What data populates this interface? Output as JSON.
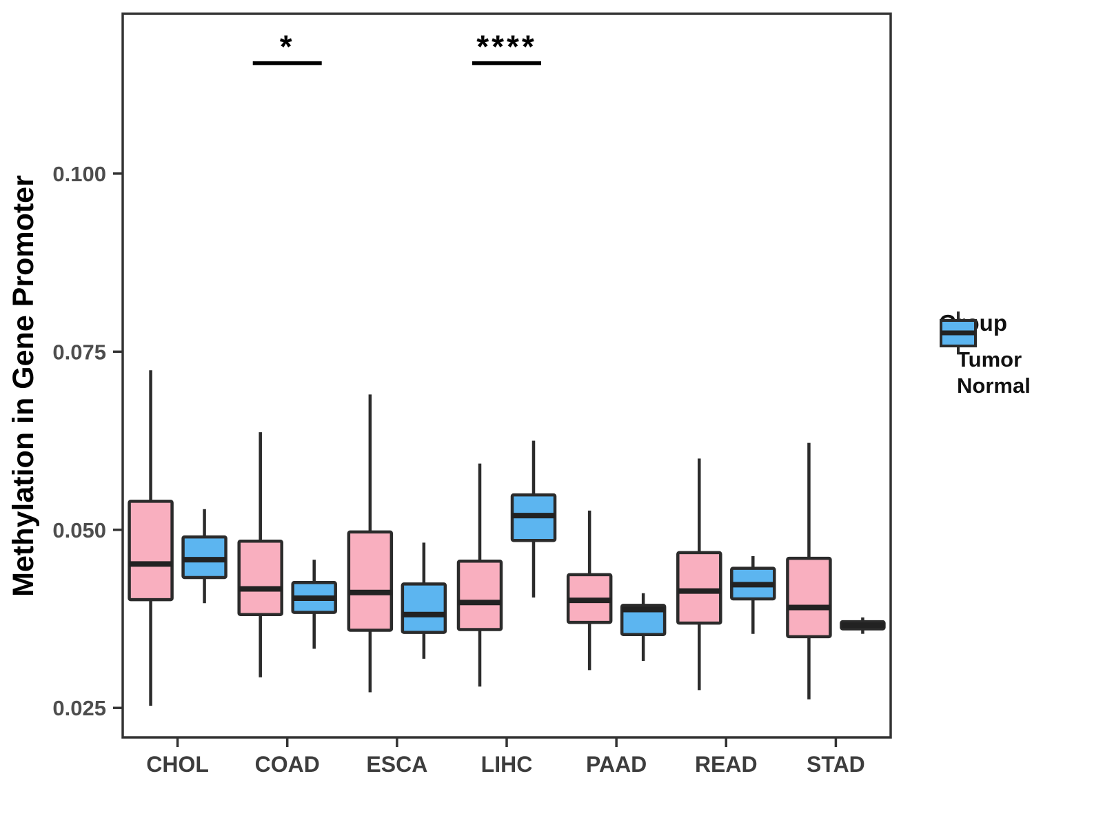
{
  "chart_data": {
    "type": "grouped_boxplot",
    "title": "",
    "x_axis": {
      "label": ""
    },
    "y_axis": {
      "label": "Methylation in Gene Promoter",
      "ticks": [
        {
          "value": 0.1,
          "label": "0.100"
        },
        {
          "value": 0.075,
          "label": "0.075"
        },
        {
          "value": 0.05,
          "label": "0.050"
        },
        {
          "value": 0.025,
          "label": "0.025"
        }
      ],
      "ylim": [
        0.0209,
        0.1224
      ],
      "grid": "off"
    },
    "categories": [
      "CHOL",
      "COAD",
      "ESCA",
      "LIHC",
      "PAAD",
      "READ",
      "STAD"
    ],
    "groups": [
      {
        "name": "Tumor",
        "color": "#F9AFBF"
      },
      {
        "name": "Normal",
        "color": "#5CB5F0"
      }
    ],
    "legend": {
      "title": "Group",
      "position": "right"
    },
    "style_colors": {
      "box_border": "#2b2b2b",
      "median": "#222222",
      "panel_border": "#333333",
      "annotation": "#000000"
    },
    "annotations": [
      {
        "category": "COAD",
        "label": "*",
        "bar_y": 0.1155
      },
      {
        "category": "LIHC",
        "label": "****",
        "bar_y": 0.1155
      }
    ],
    "series": [
      {
        "category": "CHOL",
        "boxes": [
          {
            "group": "Tumor",
            "whisker_low": 0.0253,
            "q1": 0.0402,
            "median": 0.0452,
            "q3": 0.054,
            "whisker_high": 0.0724
          },
          {
            "group": "Normal",
            "whisker_low": 0.0397,
            "q1": 0.0433,
            "median": 0.0458,
            "q3": 0.049,
            "whisker_high": 0.0529
          }
        ]
      },
      {
        "category": "COAD",
        "boxes": [
          {
            "group": "Tumor",
            "whisker_low": 0.0293,
            "q1": 0.0381,
            "median": 0.0417,
            "q3": 0.0484,
            "whisker_high": 0.0637
          },
          {
            "group": "Normal",
            "whisker_low": 0.0333,
            "q1": 0.0384,
            "median": 0.0404,
            "q3": 0.0426,
            "whisker_high": 0.0458
          }
        ]
      },
      {
        "category": "ESCA",
        "boxes": [
          {
            "group": "Tumor",
            "whisker_low": 0.0272,
            "q1": 0.0359,
            "median": 0.0412,
            "q3": 0.0497,
            "whisker_high": 0.069
          },
          {
            "group": "Normal",
            "whisker_low": 0.0319,
            "q1": 0.0356,
            "median": 0.0381,
            "q3": 0.0424,
            "whisker_high": 0.0482
          }
        ]
      },
      {
        "category": "LIHC",
        "boxes": [
          {
            "group": "Tumor",
            "whisker_low": 0.028,
            "q1": 0.036,
            "median": 0.0398,
            "q3": 0.0456,
            "whisker_high": 0.0593
          },
          {
            "group": "Normal",
            "whisker_low": 0.0405,
            "q1": 0.0485,
            "median": 0.052,
            "q3": 0.0549,
            "whisker_high": 0.0625
          }
        ]
      },
      {
        "category": "PAAD",
        "boxes": [
          {
            "group": "Tumor",
            "whisker_low": 0.0303,
            "q1": 0.037,
            "median": 0.0401,
            "q3": 0.0437,
            "whisker_high": 0.0527
          },
          {
            "group": "Normal",
            "whisker_low": 0.0316,
            "q1": 0.0353,
            "median": 0.0388,
            "q3": 0.0394,
            "whisker_high": 0.0411
          }
        ]
      },
      {
        "category": "READ",
        "boxes": [
          {
            "group": "Tumor",
            "whisker_low": 0.0275,
            "q1": 0.0369,
            "median": 0.0414,
            "q3": 0.0468,
            "whisker_high": 0.06
          },
          {
            "group": "Normal",
            "whisker_low": 0.0354,
            "q1": 0.0403,
            "median": 0.0423,
            "q3": 0.0446,
            "whisker_high": 0.0463
          }
        ]
      },
      {
        "category": "STAD",
        "boxes": [
          {
            "group": "Tumor",
            "whisker_low": 0.0262,
            "q1": 0.035,
            "median": 0.0391,
            "q3": 0.046,
            "whisker_high": 0.0622
          },
          {
            "group": "Normal",
            "whisker_low": 0.0354,
            "q1": 0.0361,
            "median": 0.0366,
            "q3": 0.0371,
            "whisker_high": 0.0377
          }
        ]
      }
    ]
  }
}
